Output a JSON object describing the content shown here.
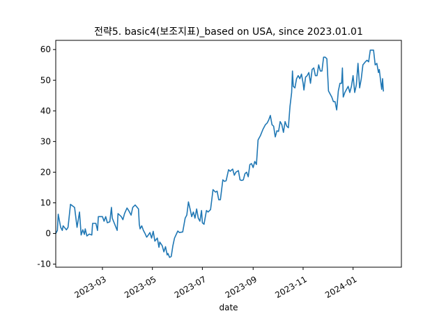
{
  "chart_data": {
    "type": "line",
    "title": "전략5. basic4(보조지표)_based on USA, since 2023.01.01",
    "xlabel": "date",
    "ylabel": "",
    "x_range": [
      "2023-01-03",
      "2024-02-29"
    ],
    "ylim": [
      -11,
      63
    ],
    "yticks": [
      -10,
      0,
      10,
      20,
      30,
      40,
      50,
      60
    ],
    "xticks": [
      {
        "date": "2023-03-01",
        "label": "2023-03"
      },
      {
        "date": "2023-05-01",
        "label": "2023-05"
      },
      {
        "date": "2023-07-01",
        "label": "2023-07"
      },
      {
        "date": "2023-09-01",
        "label": "2023-09"
      },
      {
        "date": "2023-11-01",
        "label": "2023-11"
      },
      {
        "date": "2024-01-01",
        "label": "2024-01"
      }
    ],
    "grid": false,
    "line_color": "#1f77b4",
    "series": [
      {
        "name": "",
        "points": [
          [
            "2023-01-03",
            0.0
          ],
          [
            "2023-01-05",
            1.0
          ],
          [
            "2023-01-06",
            6.3
          ],
          [
            "2023-01-09",
            2.0
          ],
          [
            "2023-01-11",
            1.0
          ],
          [
            "2023-01-12",
            2.5
          ],
          [
            "2023-01-16",
            1.2
          ],
          [
            "2023-01-18",
            2.0
          ],
          [
            "2023-01-21",
            9.5
          ],
          [
            "2023-01-26",
            8.5
          ],
          [
            "2023-01-29",
            2.0
          ],
          [
            "2023-02-01",
            7.0
          ],
          [
            "2023-02-03",
            -0.5
          ],
          [
            "2023-02-05",
            1.2
          ],
          [
            "2023-02-07",
            -0.3
          ],
          [
            "2023-02-08",
            1.5
          ],
          [
            "2023-02-10",
            -0.8
          ],
          [
            "2023-02-13",
            -0.2
          ],
          [
            "2023-02-16",
            -0.5
          ],
          [
            "2023-02-17",
            3.3
          ],
          [
            "2023-02-21",
            3.3
          ],
          [
            "2023-02-23",
            1.0
          ],
          [
            "2023-02-24",
            5.5
          ],
          [
            "2023-03-01",
            5.5
          ],
          [
            "2023-03-03",
            4.0
          ],
          [
            "2023-03-05",
            5.5
          ],
          [
            "2023-03-07",
            3.5
          ],
          [
            "2023-03-10",
            3.8
          ],
          [
            "2023-03-12",
            8.5
          ],
          [
            "2023-03-13",
            5.0
          ],
          [
            "2023-03-16",
            3.0
          ],
          [
            "2023-03-19",
            1.0
          ],
          [
            "2023-03-20",
            6.5
          ],
          [
            "2023-03-24",
            5.5
          ],
          [
            "2023-03-26",
            4.5
          ],
          [
            "2023-03-28",
            6.5
          ],
          [
            "2023-03-31",
            8.3
          ],
          [
            "2023-04-02",
            7.5
          ],
          [
            "2023-04-05",
            6.0
          ],
          [
            "2023-04-07",
            8.5
          ],
          [
            "2023-04-10",
            9.3
          ],
          [
            "2023-04-14",
            8.0
          ],
          [
            "2023-04-15",
            3.0
          ],
          [
            "2023-04-16",
            1.5
          ],
          [
            "2023-04-18",
            2.5
          ],
          [
            "2023-04-20",
            1.0
          ],
          [
            "2023-04-22",
            0.0
          ],
          [
            "2023-04-24",
            -1.2
          ],
          [
            "2023-04-26",
            -0.5
          ],
          [
            "2023-04-28",
            0.3
          ],
          [
            "2023-04-30",
            -1.5
          ],
          [
            "2023-05-02",
            0.7
          ],
          [
            "2023-05-04",
            -2.5
          ],
          [
            "2023-05-07",
            -1.5
          ],
          [
            "2023-05-09",
            -4.5
          ],
          [
            "2023-05-10",
            -2.8
          ],
          [
            "2023-05-13",
            -4.0
          ],
          [
            "2023-05-15",
            -6.0
          ],
          [
            "2023-05-17",
            -4.3
          ],
          [
            "2023-05-19",
            -7.0
          ],
          [
            "2023-05-20",
            -6.5
          ],
          [
            "2023-05-22",
            -7.8
          ],
          [
            "2023-05-24",
            -7.5
          ],
          [
            "2023-05-26",
            -4.0
          ],
          [
            "2023-05-28",
            -1.5
          ],
          [
            "2023-06-01",
            0.8
          ],
          [
            "2023-06-03",
            0.3
          ],
          [
            "2023-06-07",
            0.5
          ],
          [
            "2023-06-10",
            5.0
          ],
          [
            "2023-06-12",
            6.0
          ],
          [
            "2023-06-14",
            10.3
          ],
          [
            "2023-06-16",
            8.0
          ],
          [
            "2023-06-18",
            5.5
          ],
          [
            "2023-06-20",
            7.0
          ],
          [
            "2023-06-22",
            5.0
          ],
          [
            "2023-06-24",
            8.0
          ],
          [
            "2023-06-26",
            5.0
          ],
          [
            "2023-06-28",
            4.0
          ],
          [
            "2023-06-30",
            7.5
          ],
          [
            "2023-07-01",
            3.5
          ],
          [
            "2023-07-03",
            3.0
          ],
          [
            "2023-07-06",
            7.5
          ],
          [
            "2023-07-08",
            7.0
          ],
          [
            "2023-07-11",
            7.8
          ],
          [
            "2023-07-14",
            14.3
          ],
          [
            "2023-07-17",
            13.5
          ],
          [
            "2023-07-19",
            13.8
          ],
          [
            "2023-07-21",
            11.0
          ],
          [
            "2023-07-23",
            11.0
          ],
          [
            "2023-07-26",
            17.5
          ],
          [
            "2023-07-28",
            17.0
          ],
          [
            "2023-07-30",
            17.2
          ],
          [
            "2023-08-02",
            20.8
          ],
          [
            "2023-08-04",
            20.3
          ],
          [
            "2023-08-07",
            21.0
          ],
          [
            "2023-08-09",
            19.0
          ],
          [
            "2023-08-11",
            20.0
          ],
          [
            "2023-08-14",
            20.5
          ],
          [
            "2023-08-16",
            17.5
          ],
          [
            "2023-08-18",
            17.3
          ],
          [
            "2023-08-20",
            17.5
          ],
          [
            "2023-08-22",
            19.5
          ],
          [
            "2023-08-24",
            20.0
          ],
          [
            "2023-08-26",
            18.5
          ],
          [
            "2023-08-28",
            22.5
          ],
          [
            "2023-08-30",
            22.8
          ],
          [
            "2023-09-01",
            21.5
          ],
          [
            "2023-09-03",
            23.5
          ],
          [
            "2023-09-05",
            22.5
          ],
          [
            "2023-09-07",
            30.5
          ],
          [
            "2023-09-10",
            32.0
          ],
          [
            "2023-09-13",
            34.0
          ],
          [
            "2023-09-16",
            35.5
          ],
          [
            "2023-09-18",
            36.0
          ],
          [
            "2023-09-20",
            37.0
          ],
          [
            "2023-09-22",
            38.5
          ],
          [
            "2023-09-24",
            35.5
          ],
          [
            "2023-09-26",
            35.0
          ],
          [
            "2023-09-28",
            31.5
          ],
          [
            "2023-09-30",
            33.5
          ],
          [
            "2023-10-02",
            33.3
          ],
          [
            "2023-10-04",
            36.5
          ],
          [
            "2023-10-06",
            35.5
          ],
          [
            "2023-10-08",
            33.0
          ],
          [
            "2023-10-10",
            36.5
          ],
          [
            "2023-10-12",
            35.0
          ],
          [
            "2023-10-14",
            34.5
          ],
          [
            "2023-10-16",
            41.5
          ],
          [
            "2023-10-18",
            46.0
          ],
          [
            "2023-10-19",
            53.0
          ],
          [
            "2023-10-20",
            48.0
          ],
          [
            "2023-10-22",
            47.5
          ],
          [
            "2023-10-24",
            50.5
          ],
          [
            "2023-10-26",
            51.5
          ],
          [
            "2023-10-28",
            50.5
          ],
          [
            "2023-10-30",
            52.0
          ],
          [
            "2023-11-01",
            49.0
          ],
          [
            "2023-11-02",
            46.8
          ],
          [
            "2023-11-04",
            51.0
          ],
          [
            "2023-11-06",
            51.5
          ],
          [
            "2023-11-08",
            52.5
          ],
          [
            "2023-11-10",
            49.0
          ],
          [
            "2023-11-12",
            53.5
          ],
          [
            "2023-11-14",
            54.0
          ],
          [
            "2023-11-16",
            51.5
          ],
          [
            "2023-11-18",
            51.5
          ],
          [
            "2023-11-20",
            55.0
          ],
          [
            "2023-11-22",
            53.0
          ],
          [
            "2023-11-24",
            53.0
          ],
          [
            "2023-11-26",
            57.5
          ],
          [
            "2023-11-28",
            57.5
          ],
          [
            "2023-11-30",
            57.0
          ],
          [
            "2023-12-02",
            46.5
          ],
          [
            "2023-12-04",
            45.5
          ],
          [
            "2023-12-06",
            44.5
          ],
          [
            "2023-12-08",
            43.0
          ],
          [
            "2023-12-10",
            43.0
          ],
          [
            "2023-12-12",
            40.3
          ],
          [
            "2023-12-14",
            46.5
          ],
          [
            "2023-12-16",
            49.0
          ],
          [
            "2023-12-18",
            49.0
          ],
          [
            "2023-12-19",
            54.0
          ],
          [
            "2023-12-20",
            44.5
          ],
          [
            "2023-12-22",
            46.0
          ],
          [
            "2023-12-24",
            47.0
          ],
          [
            "2023-12-26",
            48.0
          ],
          [
            "2023-12-28",
            46.0
          ],
          [
            "2023-12-30",
            48.0
          ],
          [
            "2024-01-01",
            51.5
          ],
          [
            "2024-01-03",
            46.0
          ],
          [
            "2024-01-05",
            48.5
          ],
          [
            "2024-01-07",
            55.5
          ],
          [
            "2024-01-09",
            47.5
          ],
          [
            "2024-01-11",
            50.5
          ],
          [
            "2024-01-13",
            55.0
          ],
          [
            "2024-01-16",
            56.0
          ],
          [
            "2024-01-18",
            56.5
          ],
          [
            "2024-01-20",
            56.0
          ],
          [
            "2024-01-22",
            59.8
          ],
          [
            "2024-01-26",
            59.8
          ],
          [
            "2024-01-28",
            55.0
          ],
          [
            "2024-01-30",
            55.5
          ],
          [
            "2024-02-01",
            52.5
          ],
          [
            "2024-02-02",
            53.5
          ],
          [
            "2024-02-04",
            49.0
          ],
          [
            "2024-02-05",
            47.0
          ],
          [
            "2024-02-06",
            50.5
          ],
          [
            "2024-02-07",
            46.5
          ]
        ]
      }
    ]
  }
}
